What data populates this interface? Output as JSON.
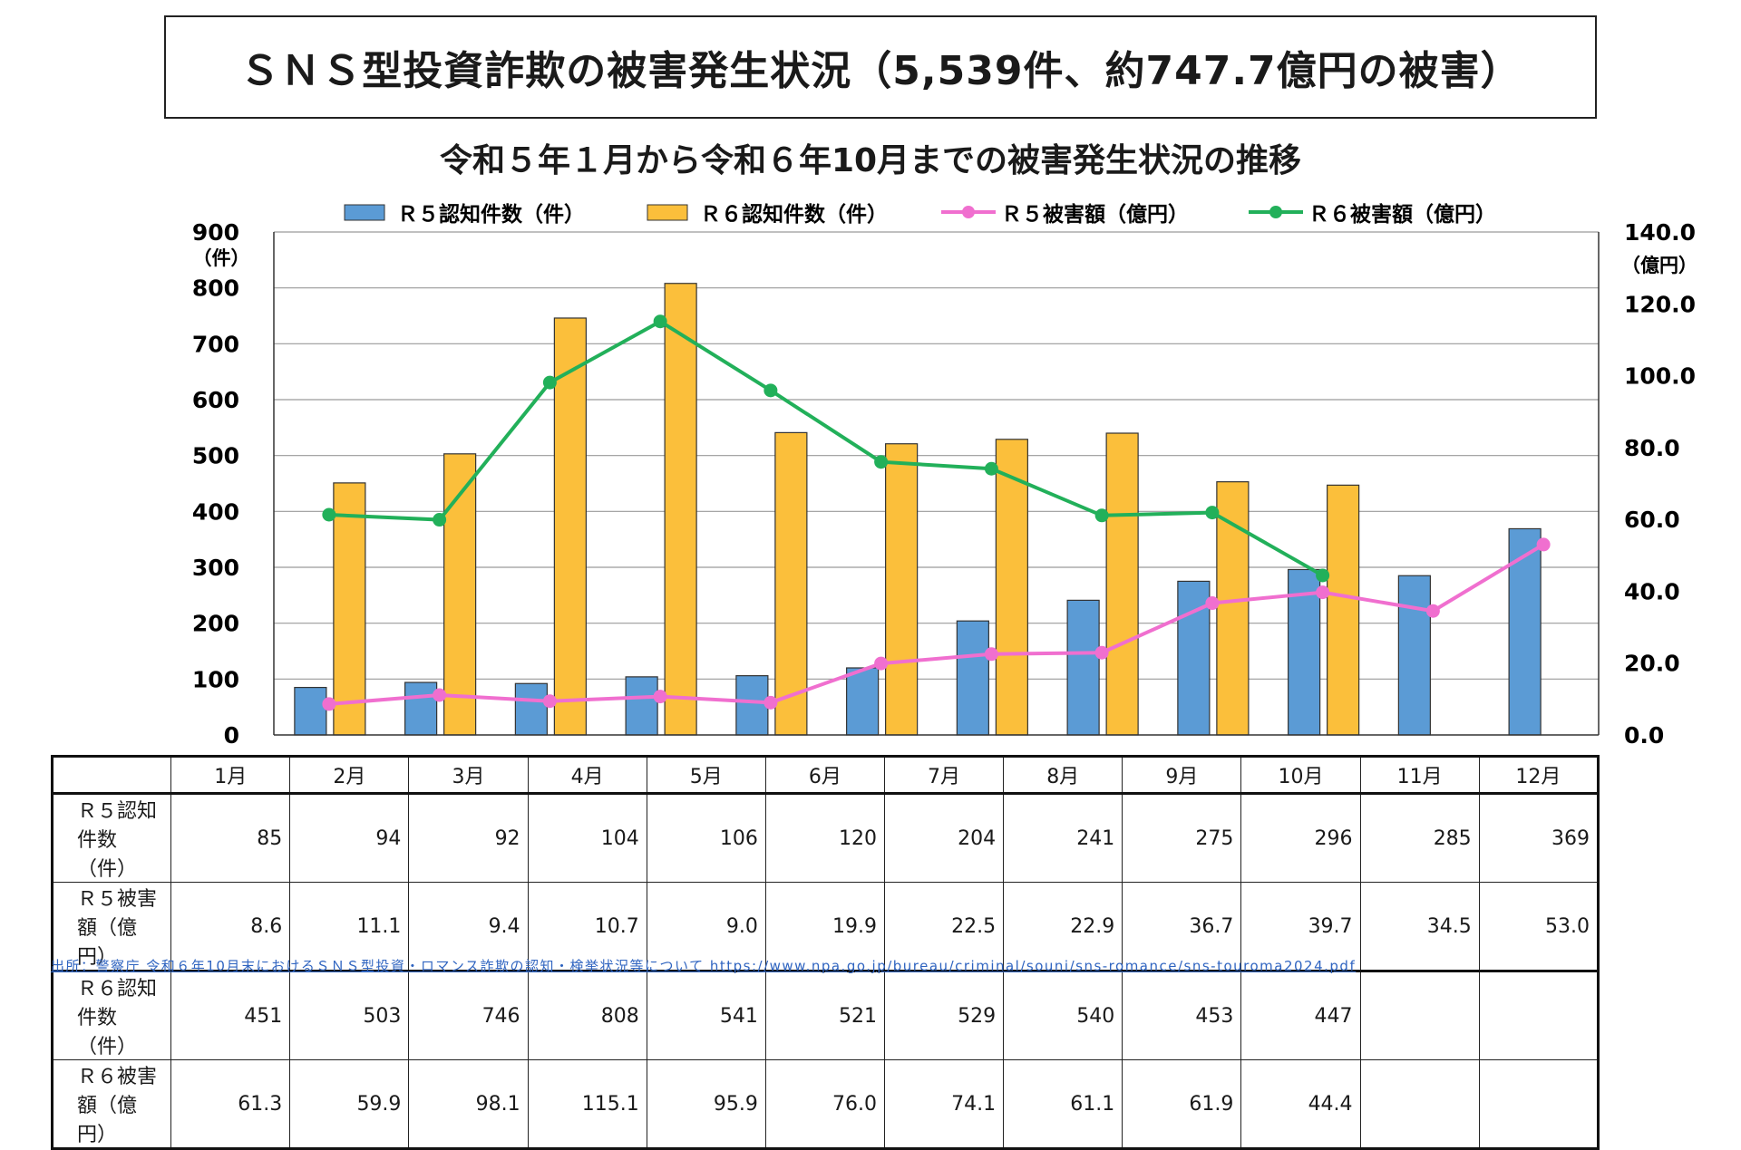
{
  "title": "ＳＮＳ型投資詐欺の被害発生状況（5,539件、約747.7億円の被害）",
  "chart_data": {
    "type": "bar",
    "subtitle": "令和５年１月から令和６年10月までの被害発生状況の推移",
    "categories": [
      "1月",
      "2月",
      "3月",
      "4月",
      "5月",
      "6月",
      "7月",
      "8月",
      "9月",
      "10月",
      "11月",
      "12月"
    ],
    "left_axis": {
      "unit": "（件）",
      "ylim": [
        0,
        900
      ],
      "ticks": [
        "0",
        "100",
        "200",
        "300",
        "400",
        "500",
        "600",
        "700",
        "800",
        "900"
      ]
    },
    "right_axis": {
      "unit": "（億円）",
      "ylim": [
        0,
        140
      ],
      "ticks": [
        "0.0",
        "20.0",
        "40.0",
        "60.0",
        "80.0",
        "100.0",
        "120.0",
        "140.0"
      ]
    },
    "series": [
      {
        "name": "Ｒ５認知件数（件）",
        "kind": "bar",
        "axis": "left",
        "color": "#5b9bd5",
        "values": [
          85,
          94,
          92,
          104,
          106,
          120,
          204,
          241,
          275,
          296,
          285,
          369
        ]
      },
      {
        "name": "Ｒ６認知件数（件）",
        "kind": "bar",
        "axis": "left",
        "color": "#fbbf3b",
        "values": [
          451,
          503,
          746,
          808,
          541,
          521,
          529,
          540,
          453,
          447,
          null,
          null
        ]
      },
      {
        "name": "Ｒ５被害額（億円）",
        "kind": "line",
        "axis": "right",
        "color": "#f06fcf",
        "values": [
          8.6,
          11.1,
          9.4,
          10.7,
          9.0,
          19.9,
          22.5,
          22.9,
          36.7,
          39.7,
          34.5,
          53.0
        ]
      },
      {
        "name": "Ｒ６被害額（億円）",
        "kind": "line",
        "axis": "right",
        "color": "#22b05a",
        "values": [
          61.3,
          59.9,
          98.1,
          115.1,
          95.9,
          76.0,
          74.1,
          61.1,
          61.9,
          44.4,
          null,
          null
        ]
      }
    ],
    "legend_position": "top",
    "grid": true
  },
  "table": {
    "header": [
      "1月",
      "2月",
      "3月",
      "4月",
      "5月",
      "6月",
      "7月",
      "8月",
      "9月",
      "10月",
      "11月",
      "12月"
    ],
    "rows": [
      {
        "label": "Ｒ５認知件数（件）",
        "cells": [
          "85",
          "94",
          "92",
          "104",
          "106",
          "120",
          "204",
          "241",
          "275",
          "296",
          "285",
          "369"
        ]
      },
      {
        "label": "Ｒ５被害額（億円）",
        "cells": [
          "8.6",
          "11.1",
          "9.4",
          "10.7",
          "9.0",
          "19.9",
          "22.5",
          "22.9",
          "36.7",
          "39.7",
          "34.5",
          "53.0"
        ]
      },
      {
        "label": "Ｒ６認知件数（件）",
        "cells": [
          "451",
          "503",
          "746",
          "808",
          "541",
          "521",
          "529",
          "540",
          "453",
          "447",
          "",
          ""
        ]
      },
      {
        "label": "Ｒ６被害額（億円）",
        "cells": [
          "61.3",
          "59.9",
          "98.1",
          "115.1",
          "95.9",
          "76.0",
          "74.1",
          "61.1",
          "61.9",
          "44.4",
          "",
          ""
        ]
      }
    ]
  },
  "source": "出所：警察庁 令和６年10月末におけるＳＮＳ型投資・ロマンス詐欺の認知・検挙状況等について https://www.npa.go.jp/bureau/criminal/souni/sns-romance/sns-touroma2024.pdf"
}
